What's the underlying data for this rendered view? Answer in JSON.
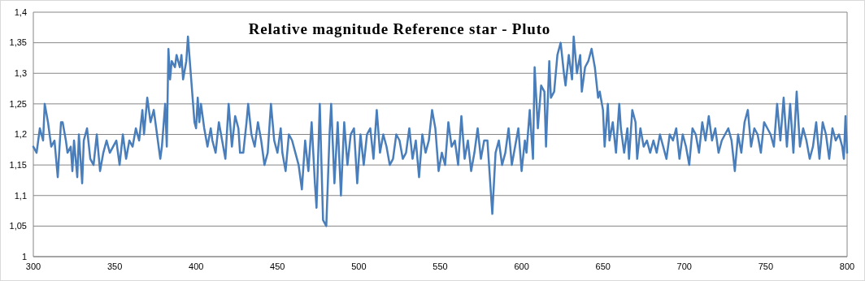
{
  "chart_data": {
    "type": "line",
    "title": "Relative magnitude Reference star - Pluto",
    "x": [
      300,
      302,
      304,
      306,
      307,
      309,
      311,
      313,
      315,
      317,
      318,
      320,
      321,
      323,
      324,
      325,
      327,
      328,
      330,
      331,
      333,
      335,
      337,
      339,
      341,
      343,
      345,
      347,
      349,
      351,
      353,
      355,
      357,
      359,
      361,
      363,
      365,
      367,
      368,
      370,
      372,
      374,
      376,
      378,
      379,
      381,
      382,
      383,
      384,
      385,
      387,
      388,
      390,
      391,
      392,
      394,
      395,
      397,
      399,
      400,
      401,
      402,
      403,
      405,
      407,
      409,
      410,
      412,
      414,
      416,
      418,
      420,
      422,
      424,
      426,
      427,
      429,
      431,
      432,
      434,
      436,
      438,
      440,
      442,
      444,
      446,
      448,
      450,
      452,
      453,
      455,
      457,
      459,
      461,
      463,
      465,
      467,
      469,
      471,
      473,
      474,
      476,
      478,
      480,
      482,
      483,
      485,
      487,
      489,
      491,
      493,
      495,
      497,
      499,
      501,
      503,
      505,
      507,
      509,
      511,
      513,
      515,
      517,
      519,
      521,
      523,
      525,
      527,
      529,
      531,
      533,
      535,
      537,
      539,
      541,
      543,
      545,
      547,
      549,
      551,
      553,
      555,
      557,
      559,
      561,
      563,
      565,
      567,
      569,
      571,
      573,
      575,
      577,
      579,
      581,
      582,
      584,
      586,
      588,
      590,
      592,
      594,
      596,
      598,
      600,
      602,
      603,
      605,
      607,
      608,
      610,
      612,
      614,
      615,
      617,
      618,
      620,
      622,
      624,
      626,
      627,
      629,
      631,
      632,
      634,
      636,
      637,
      639,
      641,
      643,
      645,
      647,
      648,
      650,
      651,
      653,
      654,
      656,
      658,
      660,
      661,
      663,
      665,
      666,
      668,
      670,
      671,
      673,
      675,
      677,
      679,
      681,
      683,
      685,
      687,
      689,
      691,
      693,
      695,
      697,
      699,
      701,
      703,
      705,
      707,
      709,
      711,
      713,
      715,
      717,
      719,
      721,
      723,
      725,
      727,
      729,
      731,
      733,
      735,
      737,
      739,
      741,
      743,
      745,
      747,
      749,
      751,
      753,
      755,
      757,
      759,
      761,
      763,
      765,
      767,
      769,
      771,
      773,
      775,
      777,
      779,
      781,
      783,
      785,
      787,
      789,
      791,
      793,
      795,
      797,
      798,
      799,
      800
    ],
    "series": [
      {
        "color": "#4a7ebb",
        "values": [
          1.18,
          1.17,
          1.21,
          1.19,
          1.25,
          1.22,
          1.18,
          1.19,
          1.13,
          1.22,
          1.22,
          1.19,
          1.17,
          1.18,
          1.14,
          1.19,
          1.13,
          1.2,
          1.12,
          1.19,
          1.21,
          1.16,
          1.15,
          1.2,
          1.14,
          1.17,
          1.19,
          1.17,
          1.18,
          1.19,
          1.15,
          1.2,
          1.16,
          1.19,
          1.18,
          1.21,
          1.19,
          1.24,
          1.2,
          1.26,
          1.22,
          1.24,
          1.2,
          1.16,
          1.18,
          1.25,
          1.18,
          1.34,
          1.29,
          1.32,
          1.31,
          1.33,
          1.31,
          1.33,
          1.29,
          1.32,
          1.36,
          1.29,
          1.22,
          1.21,
          1.26,
          1.22,
          1.25,
          1.21,
          1.18,
          1.21,
          1.19,
          1.17,
          1.22,
          1.19,
          1.16,
          1.25,
          1.18,
          1.23,
          1.21,
          1.17,
          1.17,
          1.22,
          1.25,
          1.2,
          1.18,
          1.22,
          1.19,
          1.15,
          1.17,
          1.25,
          1.19,
          1.17,
          1.21,
          1.17,
          1.14,
          1.2,
          1.19,
          1.17,
          1.15,
          1.11,
          1.19,
          1.14,
          1.22,
          1.12,
          1.08,
          1.25,
          1.06,
          1.05,
          1.2,
          1.25,
          1.12,
          1.22,
          1.1,
          1.22,
          1.15,
          1.2,
          1.21,
          1.12,
          1.2,
          1.15,
          1.2,
          1.21,
          1.16,
          1.24,
          1.17,
          1.2,
          1.18,
          1.15,
          1.16,
          1.2,
          1.19,
          1.16,
          1.17,
          1.21,
          1.16,
          1.19,
          1.13,
          1.2,
          1.17,
          1.19,
          1.24,
          1.21,
          1.14,
          1.17,
          1.15,
          1.22,
          1.18,
          1.19,
          1.15,
          1.23,
          1.16,
          1.19,
          1.14,
          1.17,
          1.21,
          1.16,
          1.19,
          1.19,
          1.11,
          1.07,
          1.17,
          1.19,
          1.15,
          1.17,
          1.21,
          1.15,
          1.18,
          1.21,
          1.14,
          1.19,
          1.17,
          1.24,
          1.16,
          1.31,
          1.21,
          1.28,
          1.27,
          1.18,
          1.32,
          1.26,
          1.27,
          1.33,
          1.35,
          1.3,
          1.28,
          1.33,
          1.29,
          1.36,
          1.3,
          1.33,
          1.27,
          1.31,
          1.32,
          1.34,
          1.31,
          1.26,
          1.27,
          1.24,
          1.18,
          1.25,
          1.19,
          1.22,
          1.17,
          1.25,
          1.21,
          1.17,
          1.21,
          1.16,
          1.24,
          1.22,
          1.16,
          1.21,
          1.18,
          1.19,
          1.17,
          1.19,
          1.17,
          1.2,
          1.18,
          1.16,
          1.2,
          1.19,
          1.21,
          1.16,
          1.2,
          1.18,
          1.15,
          1.21,
          1.2,
          1.17,
          1.22,
          1.19,
          1.23,
          1.19,
          1.21,
          1.17,
          1.19,
          1.2,
          1.21,
          1.19,
          1.14,
          1.2,
          1.17,
          1.22,
          1.24,
          1.18,
          1.21,
          1.2,
          1.17,
          1.22,
          1.21,
          1.2,
          1.18,
          1.25,
          1.19,
          1.26,
          1.18,
          1.25,
          1.17,
          1.27,
          1.18,
          1.21,
          1.19,
          1.16,
          1.18,
          1.22,
          1.16,
          1.22,
          1.2,
          1.16,
          1.21,
          1.19,
          1.2,
          1.18,
          1.16,
          1.23,
          1.17
        ]
      }
    ],
    "xlim": [
      300,
      800
    ],
    "xticks": [
      300,
      350,
      400,
      450,
      500,
      550,
      600,
      650,
      700,
      750,
      800
    ],
    "ylim": [
      1,
      1.4
    ],
    "yticks": [
      {
        "value": 1,
        "label": "1"
      },
      {
        "value": 1.05,
        "label": "1,05"
      },
      {
        "value": 1.1,
        "label": "1,1"
      },
      {
        "value": 1.15,
        "label": "1,15"
      },
      {
        "value": 1.2,
        "label": "1,2"
      },
      {
        "value": 1.25,
        "label": "1,25"
      },
      {
        "value": 1.3,
        "label": "1,3"
      },
      {
        "value": 1.35,
        "label": "1,35"
      },
      {
        "value": 1.4,
        "label": "1,4"
      }
    ],
    "grid": "y"
  }
}
